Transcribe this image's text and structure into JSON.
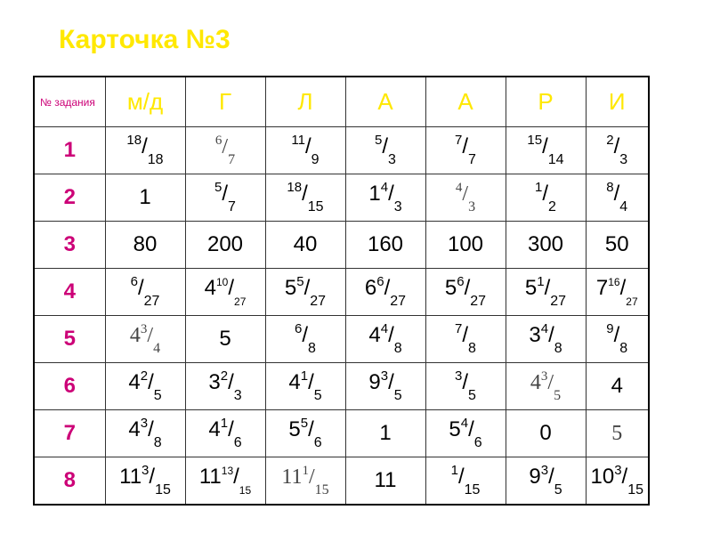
{
  "title": "Карточка №3",
  "colors": {
    "title": "#FFE800",
    "header_letters": "#FFE800",
    "row_numbers": "#CC0077"
  },
  "header": {
    "first": "№ задания",
    "columns": [
      "м/д",
      "Г",
      "Л",
      "А",
      "А",
      "Р",
      "И"
    ]
  },
  "rows": [
    {
      "n": "1",
      "cells": [
        {
          "num": "18",
          "den": "18"
        },
        {
          "num": "6",
          "den": "7",
          "serif": true
        },
        {
          "num": "11",
          "den": "9"
        },
        {
          "num": "5",
          "den": "3"
        },
        {
          "num": "7",
          "den": "7"
        },
        {
          "num": "15",
          "den": "14"
        },
        {
          "num": "2",
          "den": "3"
        }
      ]
    },
    {
      "n": "2",
      "cells": [
        {
          "whole": "1"
        },
        {
          "num": "5",
          "den": "7"
        },
        {
          "num": "18",
          "den": "15"
        },
        {
          "whole": "1",
          "num": "4",
          "den": "3"
        },
        {
          "num": "4",
          "den": "3",
          "serif": true
        },
        {
          "num": "1",
          "den": "2"
        },
        {
          "num": "8",
          "den": "4"
        }
      ]
    },
    {
      "n": "3",
      "cells": [
        {
          "whole": "80"
        },
        {
          "whole": "200"
        },
        {
          "whole": "40"
        },
        {
          "whole": "160"
        },
        {
          "whole": "100"
        },
        {
          "whole": "300"
        },
        {
          "whole": "50"
        }
      ]
    },
    {
      "n": "4",
      "cells": [
        {
          "num": "6",
          "den": "27"
        },
        {
          "whole": "4",
          "num": "10",
          "den": "27",
          "small": true
        },
        {
          "whole": "5",
          "num": "5",
          "den": "27"
        },
        {
          "whole": "6",
          "num": "6",
          "den": "27"
        },
        {
          "whole": "5",
          "num": "6",
          "den": "27"
        },
        {
          "whole": "5",
          "num": "1",
          "den": "27"
        },
        {
          "whole": "7",
          "num": "16",
          "den": "27",
          "small": true
        }
      ]
    },
    {
      "n": "5",
      "cells": [
        {
          "whole": "4",
          "num": "3",
          "den": "4",
          "serif": true
        },
        {
          "whole": "5"
        },
        {
          "num": "6",
          "den": "8"
        },
        {
          "whole": "4",
          "num": "4",
          "den": "8"
        },
        {
          "num": "7",
          "den": "8"
        },
        {
          "whole": "3",
          "num": "4",
          "den": "8"
        },
        {
          "num": "9",
          "den": "8"
        }
      ]
    },
    {
      "n": "6",
      "cells": [
        {
          "whole": "4",
          "num": "2",
          "den": "5"
        },
        {
          "whole": "3",
          "num": "2",
          "den": "3"
        },
        {
          "whole": "4",
          "num": "1",
          "den": "5"
        },
        {
          "whole": "9",
          "num": "3",
          "den": "5"
        },
        {
          "num": "3",
          "den": "5"
        },
        {
          "whole": "4",
          "num": "3",
          "den": "5",
          "serif": true
        },
        {
          "whole": "4"
        }
      ]
    },
    {
      "n": "7",
      "cells": [
        {
          "whole": "4",
          "num": "3",
          "den": "8"
        },
        {
          "whole": "4",
          "num": "1",
          "den": "6"
        },
        {
          "whole": "5",
          "num": "5",
          "den": "6"
        },
        {
          "whole": "1"
        },
        {
          "whole": "5",
          "num": "4",
          "den": "6"
        },
        {
          "whole": "0"
        },
        {
          "whole": "5",
          "serif": true
        }
      ]
    },
    {
      "n": "8",
      "cells": [
        {
          "whole": "11",
          "num": "3",
          "den": "15"
        },
        {
          "whole": "11",
          "num": "13",
          "den": "15",
          "small": true
        },
        {
          "whole": "11",
          "num": "1",
          "den": "15",
          "serif": true
        },
        {
          "whole": "11"
        },
        {
          "num": "1",
          "den": "15"
        },
        {
          "whole": "9",
          "num": "3",
          "den": "5"
        },
        {
          "whole": "10",
          "num": "3",
          "den": "15"
        }
      ]
    }
  ]
}
